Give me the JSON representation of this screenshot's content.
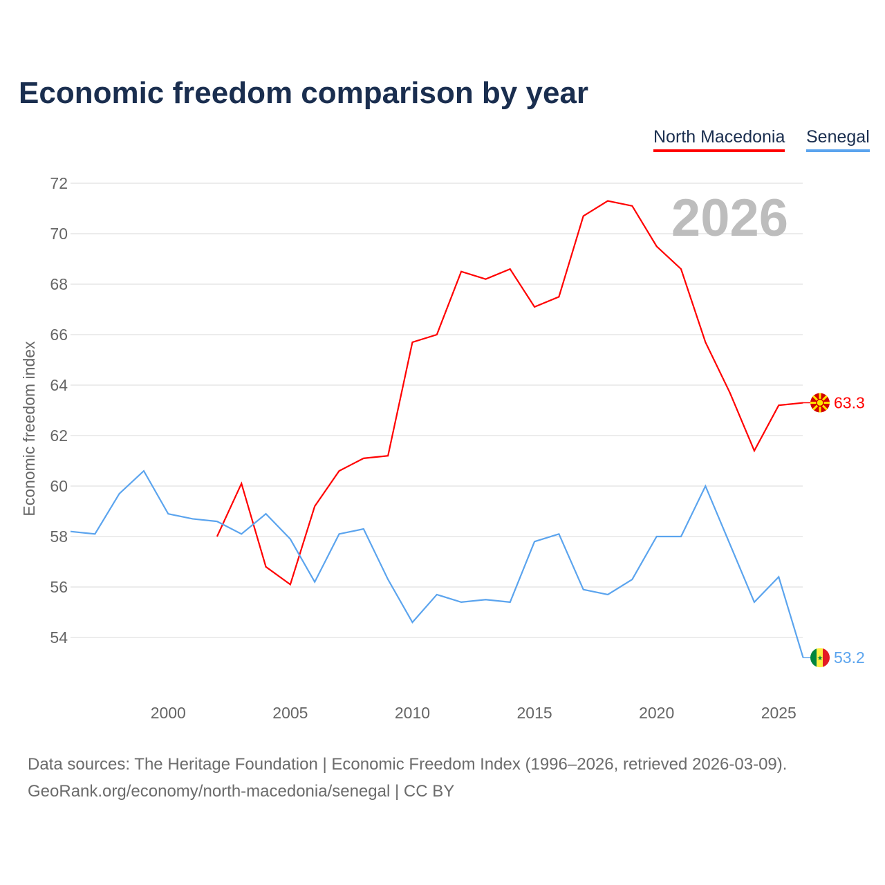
{
  "chart_data": {
    "type": "line",
    "title": "Economic freedom comparison by year",
    "ylabel": "Economic freedom index",
    "xlabel": "",
    "year_watermark": "2026",
    "ylim": [
      52.5,
      72.5
    ],
    "xlim": [
      1996,
      2026
    ],
    "yticks": [
      54,
      56,
      58,
      60,
      62,
      64,
      66,
      68,
      70,
      72
    ],
    "xticks": [
      2000,
      2005,
      2010,
      2015,
      2020,
      2025
    ],
    "grid": true,
    "legend_position": "top-right",
    "series": [
      {
        "name": "North Macedonia",
        "color": "#ff0000",
        "end_label": "63.3",
        "flag": "north-macedonia-flag",
        "x": [
          2002,
          2003,
          2004,
          2005,
          2006,
          2007,
          2008,
          2009,
          2010,
          2011,
          2012,
          2013,
          2014,
          2015,
          2016,
          2017,
          2018,
          2019,
          2020,
          2021,
          2022,
          2023,
          2024,
          2025,
          2026
        ],
        "values": [
          58.0,
          60.1,
          56.8,
          56.1,
          59.2,
          60.6,
          61.1,
          61.2,
          65.7,
          66.0,
          68.5,
          68.2,
          68.6,
          67.1,
          67.5,
          70.7,
          71.3,
          71.1,
          69.5,
          68.6,
          65.7,
          63.7,
          61.4,
          63.2,
          63.3
        ]
      },
      {
        "name": "Senegal",
        "color": "#5ba4ee",
        "end_label": "53.2",
        "flag": "senegal-flag",
        "x": [
          1996,
          1997,
          1998,
          1999,
          2000,
          2001,
          2002,
          2003,
          2004,
          2005,
          2006,
          2007,
          2008,
          2009,
          2010,
          2011,
          2012,
          2013,
          2014,
          2015,
          2016,
          2017,
          2018,
          2019,
          2020,
          2021,
          2022,
          2023,
          2024,
          2025,
          2026
        ],
        "values": [
          58.2,
          58.1,
          59.7,
          60.6,
          58.9,
          58.7,
          58.6,
          58.1,
          58.9,
          57.9,
          56.2,
          58.1,
          58.3,
          56.3,
          54.6,
          55.7,
          55.4,
          55.5,
          55.4,
          57.8,
          58.1,
          55.9,
          55.7,
          56.3,
          58.0,
          58.0,
          60.0,
          57.7,
          55.4,
          56.4,
          53.2
        ]
      }
    ]
  },
  "footer": {
    "line1": "Data sources: The Heritage Foundation | Economic Freedom Index (1996–2026, retrieved 2026-03-09).",
    "line2": "GeoRank.org/economy/north-macedonia/senegal | CC BY"
  }
}
